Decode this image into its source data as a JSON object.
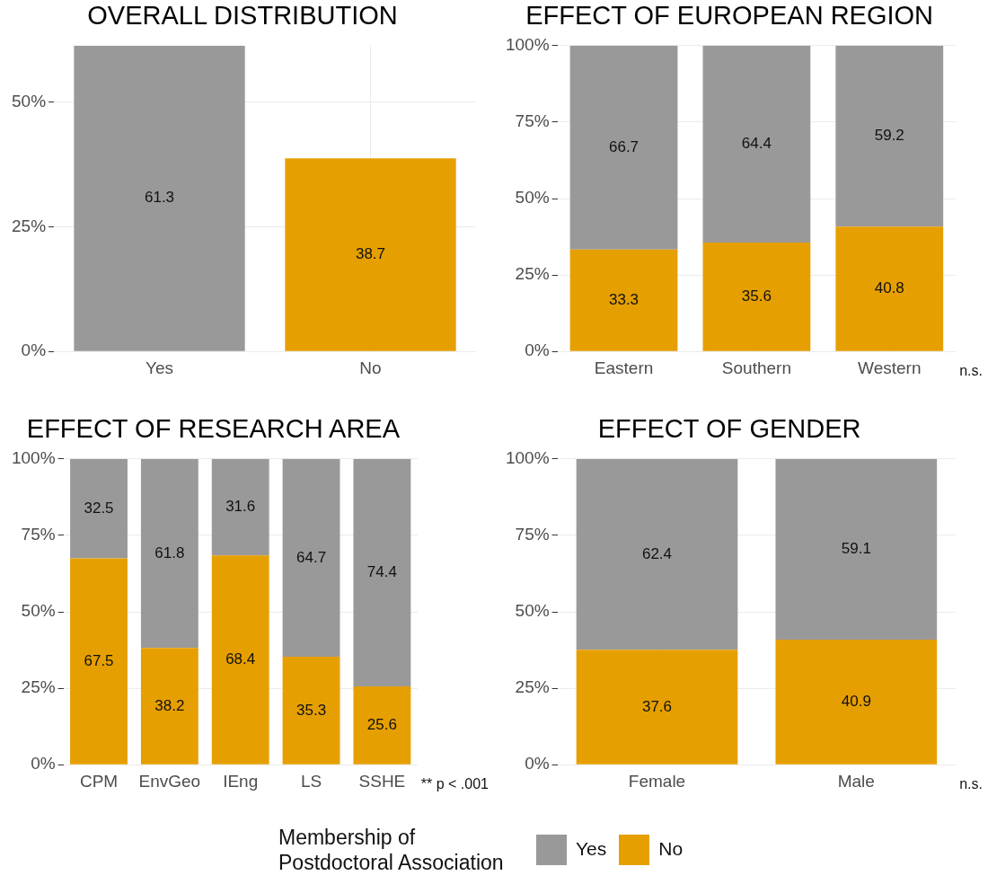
{
  "chart_data": [
    {
      "type": "bar",
      "title": "OVERALL DISTRIBUTION",
      "categories": [
        "Yes",
        "No"
      ],
      "values": [
        61.3,
        38.7
      ],
      "colors": [
        "#999999",
        "#e69f00"
      ],
      "ylim": [
        0,
        61.3
      ],
      "yticks": [
        {
          "value": 0,
          "label": "0%"
        },
        {
          "value": 25,
          "label": "25%"
        },
        {
          "value": 50,
          "label": "50%"
        }
      ],
      "grid": true,
      "data_labels": true
    },
    {
      "type": "bar",
      "title": "EFFECT OF EUROPEAN REGION",
      "categories": [
        "Eastern",
        "Southern",
        "Western"
      ],
      "stacked": true,
      "series": [
        {
          "color": "#e69f00",
          "values": [
            33.3,
            35.6,
            40.8
          ]
        },
        {
          "color": "#999999",
          "values": [
            66.7,
            64.4,
            59.2
          ]
        }
      ],
      "ylim": [
        0,
        100
      ],
      "yticks": [
        {
          "value": 0,
          "label": "0%"
        },
        {
          "value": 25,
          "label": "25%"
        },
        {
          "value": 50,
          "label": "50%"
        },
        {
          "value": 75,
          "label": "75%"
        },
        {
          "value": 100,
          "label": "100%"
        }
      ],
      "grid": true,
      "data_labels": true,
      "annotations": [
        "n.s."
      ]
    },
    {
      "type": "bar",
      "title": "EFFECT OF RESEARCH AREA",
      "categories": [
        "CPM",
        "EnvGeo",
        "IEng",
        "LS",
        "SSHE"
      ],
      "stacked": true,
      "series": [
        {
          "name": "No",
          "color": "#e69f00",
          "values": [
            67.5,
            38.2,
            68.4,
            35.3,
            25.6
          ]
        },
        {
          "name": "Yes",
          "color": "#999999",
          "values": [
            32.5,
            61.8,
            31.6,
            64.7,
            74.4
          ]
        }
      ],
      "ylim": [
        0,
        100
      ],
      "yticks": [
        {
          "value": 0,
          "label": "0%"
        },
        {
          "value": 25,
          "label": "25%"
        },
        {
          "value": 50,
          "label": "50%"
        },
        {
          "value": 75,
          "label": "75%"
        },
        {
          "value": 100,
          "label": "100%"
        }
      ],
      "grid": true,
      "data_labels": true,
      "annotations": [
        "** p < .001"
      ],
      "legend": "bottom",
      "legend_title": "Membership of Postdoctoral Association"
    },
    {
      "type": "bar",
      "title": "EFFECT OF GENDER",
      "categories": [
        "Female",
        "Male"
      ],
      "stacked": true,
      "series": [
        {
          "color": "#e69f00",
          "values": [
            37.6,
            40.9
          ]
        },
        {
          "color": "#999999",
          "values": [
            62.4,
            59.1
          ]
        }
      ],
      "ylim": [
        0,
        100
      ],
      "yticks": [
        {
          "value": 0,
          "label": "0%"
        },
        {
          "value": 25,
          "label": "25%"
        },
        {
          "value": 50,
          "label": "50%"
        },
        {
          "value": 75,
          "label": "75%"
        },
        {
          "value": 100,
          "label": "100%"
        }
      ],
      "grid": true,
      "data_labels": true,
      "annotations": [
        "n.s."
      ]
    }
  ]
}
